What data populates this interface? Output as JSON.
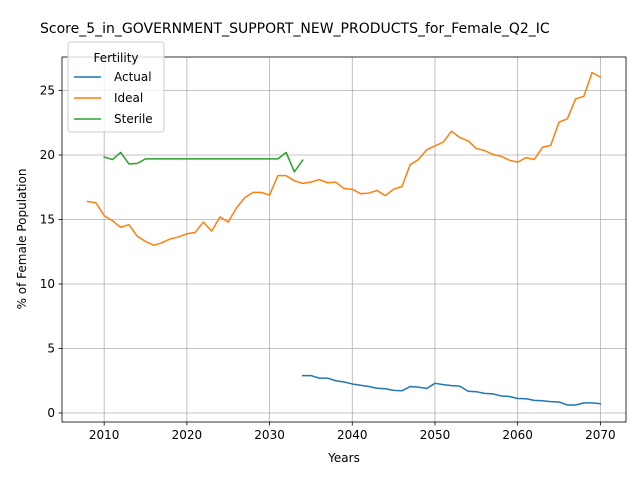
{
  "chart_data": {
    "type": "line",
    "title": "Score_5_in_GOVERNMENT_SUPPORT_NEW_PRODUCTS_for_Female_Q2_IC",
    "xlabel": "Years",
    "ylabel": "% of Female Population",
    "xlim": [
      2004.9,
      2073.1
    ],
    "ylim": [
      -0.7,
      27.6
    ],
    "xticks": [
      2010,
      2020,
      2030,
      2040,
      2050,
      2060,
      2070
    ],
    "yticks": [
      0,
      5,
      10,
      15,
      20,
      25
    ],
    "grid": true,
    "legend": {
      "title": "Fertility",
      "position": "top-left"
    },
    "series": [
      {
        "name": "Actual",
        "color": "#1f77b4",
        "x": [
          2034,
          2035,
          2036,
          2037,
          2038,
          2039,
          2040,
          2041,
          2042,
          2043,
          2044,
          2045,
          2046,
          2047,
          2048,
          2049,
          2050,
          2051,
          2052,
          2053,
          2054,
          2055,
          2056,
          2057,
          2058,
          2059,
          2060,
          2061,
          2062,
          2063,
          2064,
          2065,
          2066,
          2067,
          2068,
          2069,
          2070
        ],
        "y": [
          2.9,
          2.9,
          2.7,
          2.7,
          2.5,
          2.4,
          2.25,
          2.15,
          2.05,
          1.92,
          1.88,
          1.75,
          1.72,
          2.05,
          2.0,
          1.9,
          2.3,
          2.2,
          2.12,
          2.08,
          1.68,
          1.65,
          1.52,
          1.48,
          1.32,
          1.28,
          1.12,
          1.1,
          0.98,
          0.95,
          0.88,
          0.85,
          0.62,
          0.62,
          0.78,
          0.78,
          0.72
        ]
      },
      {
        "name": "Ideal",
        "color": "#ff7f0e",
        "x": [
          2008,
          2009,
          2010,
          2011,
          2012,
          2013,
          2014,
          2015,
          2016,
          2017,
          2018,
          2019,
          2020,
          2021,
          2022,
          2023,
          2024,
          2025,
          2026,
          2027,
          2028,
          2029,
          2030,
          2031,
          2032,
          2033,
          2034,
          2035,
          2036,
          2037,
          2038,
          2039,
          2040,
          2041,
          2042,
          2043,
          2044,
          2045,
          2046,
          2047,
          2048,
          2049,
          2050,
          2051,
          2052,
          2053,
          2054,
          2055,
          2056,
          2057,
          2058,
          2059,
          2060,
          2061,
          2062,
          2063,
          2064,
          2065,
          2066,
          2067,
          2068,
          2069,
          2070
        ],
        "y": [
          16.4,
          16.3,
          15.3,
          14.9,
          14.4,
          14.6,
          13.7,
          13.3,
          13.0,
          13.2,
          13.5,
          13.65,
          13.9,
          14.0,
          14.8,
          14.1,
          15.2,
          14.8,
          15.9,
          16.7,
          17.1,
          17.1,
          16.9,
          18.4,
          18.4,
          18.0,
          17.8,
          17.9,
          18.1,
          17.85,
          17.9,
          17.4,
          17.35,
          17.0,
          17.05,
          17.25,
          16.85,
          17.35,
          17.55,
          19.25,
          19.65,
          20.4,
          20.7,
          21.0,
          21.85,
          21.35,
          21.1,
          20.5,
          20.35,
          20.05,
          19.9,
          19.6,
          19.45,
          19.8,
          19.65,
          20.6,
          20.75,
          22.55,
          22.8,
          24.35,
          24.55,
          26.4,
          26.05
        ]
      },
      {
        "name": "Sterile",
        "color": "#2ca02c",
        "x": [
          2010,
          2011,
          2012,
          2013,
          2014,
          2015,
          2016,
          2017,
          2018,
          2019,
          2020,
          2021,
          2022,
          2023,
          2024,
          2025,
          2026,
          2027,
          2028,
          2029,
          2030,
          2031,
          2032,
          2033,
          2034
        ],
        "y": [
          19.85,
          19.65,
          20.2,
          19.3,
          19.35,
          19.7,
          19.7,
          19.7,
          19.7,
          19.7,
          19.7,
          19.7,
          19.7,
          19.7,
          19.7,
          19.7,
          19.7,
          19.7,
          19.7,
          19.7,
          19.7,
          19.7,
          20.2,
          18.7,
          19.6
        ]
      }
    ]
  }
}
